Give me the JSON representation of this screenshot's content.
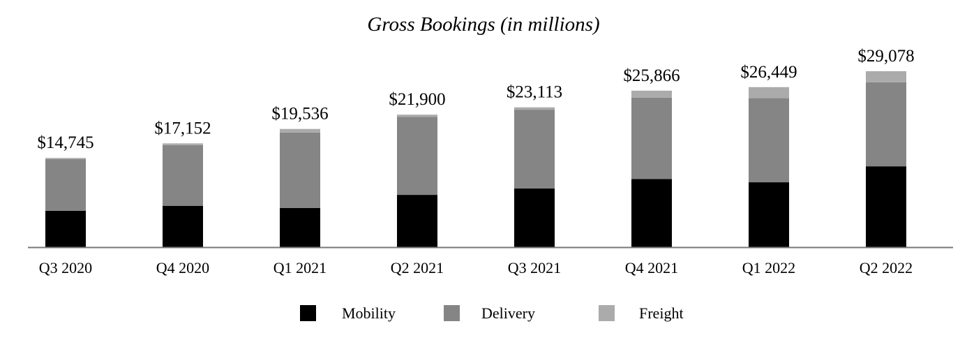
{
  "chart_data": {
    "type": "bar",
    "stacked": true,
    "title": "Gross Bookings (in millions)",
    "xlabel": "",
    "ylabel": "",
    "categories": [
      "Q3 2020",
      "Q4 2020",
      "Q1 2021",
      "Q2 2021",
      "Q3 2021",
      "Q4 2021",
      "Q1 2022",
      "Q2 2022"
    ],
    "totals_labels": [
      "$14,745",
      "$17,152",
      "$19,536",
      "$21,900",
      "$23,113",
      "$25,866",
      "$26,449",
      "$29,078"
    ],
    "series": [
      {
        "name": "Mobility",
        "color": "#000000",
        "values": [
          6015,
          6837,
          6488,
          8643,
          9709,
          11270,
          10723,
          13364
        ]
      },
      {
        "name": "Delivery",
        "color": "#858585",
        "values": [
          8549,
          10032,
          12459,
          12889,
          13011,
          13444,
          13903,
          13876
        ]
      },
      {
        "name": "Freight",
        "color": "#ababab",
        "values": [
          181,
          283,
          589,
          368,
          393,
          1152,
          1823,
          1838
        ]
      }
    ],
    "ylim": [
      0,
      31000
    ],
    "grid": false,
    "legend": "bottom-center"
  }
}
